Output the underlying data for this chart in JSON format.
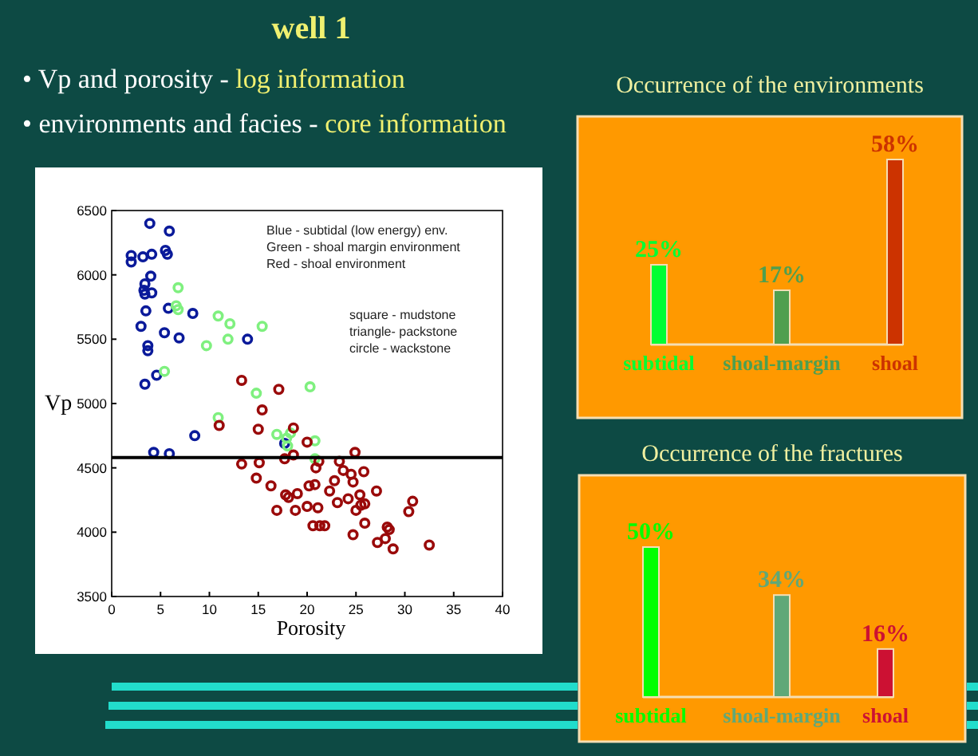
{
  "chart_data": [
    {
      "type": "scatter",
      "title": "well 1",
      "xlabel": "Porosity",
      "ylabel": "Vp",
      "xlim": [
        0,
        40
      ],
      "ylim": [
        3500,
        6500
      ],
      "xticks": [
        0,
        5,
        10,
        15,
        20,
        25,
        30,
        35,
        40
      ],
      "yticks": [
        3500,
        4000,
        4500,
        5000,
        5500,
        6000,
        6500
      ],
      "grid": false,
      "marker": "circle",
      "annotations": [
        "• Vp  and porosity - log information",
        "• environments and facies - core information",
        "Blue   - subtidal (low energy) env.",
        "Green - shoal margin environment",
        "Red    - shoal environment",
        "square - mudstone",
        "triangle- packstone",
        "circle   - wackstone"
      ],
      "ref_lines": [
        {
          "axis": "y",
          "value": 4580,
          "color": "#000000"
        }
      ],
      "series": [
        {
          "color": "#0a1a9a",
          "x": [
            3.9,
            5.9,
            2.0,
            2.0,
            3.2,
            4.1,
            5.5,
            5.7,
            4.0,
            3.4,
            3.3,
            4.1,
            3.4,
            3.5,
            5.8,
            8.3,
            3.0,
            5.4,
            6.9,
            3.7,
            3.7,
            13.9,
            4.6,
            3.4,
            8.5,
            4.3,
            5.9,
            17.7
          ],
          "values": [
            6400,
            6340,
            6150,
            6100,
            6140,
            6160,
            6190,
            6160,
            5990,
            5930,
            5880,
            5860,
            5850,
            5720,
            5740,
            5700,
            5600,
            5550,
            5510,
            5450,
            5410,
            5500,
            5220,
            5150,
            4750,
            4620,
            4610,
            4690
          ]
        },
        {
          "color": "#7ff07f",
          "x": [
            6.8,
            6.6,
            6.8,
            10.9,
            12.1,
            15.4,
            9.7,
            11.9,
            5.4,
            14.8,
            20.3,
            10.9,
            16.9,
            17.9,
            18.3,
            18.0,
            20.8,
            20.8
          ],
          "values": [
            5900,
            5760,
            5730,
            5680,
            5620,
            5600,
            5450,
            5500,
            5250,
            5080,
            5130,
            4890,
            4760,
            4730,
            4770,
            4670,
            4710,
            4570
          ]
        },
        {
          "color": "#9a0a0a",
          "x": [
            13.3,
            17.1,
            15.4,
            11.0,
            15.0,
            18.6,
            20.0,
            13.3,
            15.1,
            17.7,
            18.6,
            21.2,
            24.9,
            14.8,
            16.3,
            20.9,
            23.3,
            23.7,
            24.5,
            17.8,
            18.1,
            19.0,
            20.2,
            20.8,
            22.8,
            24.7,
            25.8,
            22.3,
            24.2,
            25.4,
            27.1,
            16.9,
            18.8,
            20.0,
            21.1,
            23.1,
            25.0,
            25.5,
            25.9,
            30.8,
            30.4,
            20.6,
            21.3,
            21.8,
            25.9,
            28.2,
            28.4,
            24.7,
            27.2,
            28.0,
            28.8,
            32.5
          ],
          "values": [
            5180,
            5110,
            4950,
            4830,
            4800,
            4810,
            4700,
            4530,
            4540,
            4570,
            4600,
            4550,
            4620,
            4420,
            4360,
            4500,
            4550,
            4480,
            4450,
            4290,
            4270,
            4300,
            4360,
            4370,
            4400,
            4390,
            4470,
            4320,
            4260,
            4290,
            4320,
            4170,
            4170,
            4200,
            4190,
            4230,
            4170,
            4210,
            4220,
            4240,
            4160,
            4050,
            4050,
            4050,
            4070,
            4040,
            4020,
            3980,
            3920,
            3950,
            3870,
            3900
          ]
        }
      ]
    },
    {
      "type": "bar",
      "title": "Occurrence of the environments",
      "categories": [
        "subtidal",
        "shoal-margin",
        "shoal"
      ],
      "values": [
        25,
        17,
        58
      ],
      "colors": [
        "#00ff33",
        "#4f9f4f",
        "#cc3300"
      ],
      "value_labels": [
        "25%",
        "17%",
        "58%"
      ]
    },
    {
      "type": "bar",
      "title": "Occurrence of the fractures",
      "categories": [
        "subtidal",
        "shoal-margin",
        "shoal"
      ],
      "values": [
        50,
        34,
        16
      ],
      "colors": [
        "#00ff00",
        "#5fa878",
        "#cc1133"
      ],
      "value_labels": [
        "50%",
        "34%",
        "16%"
      ]
    }
  ]
}
